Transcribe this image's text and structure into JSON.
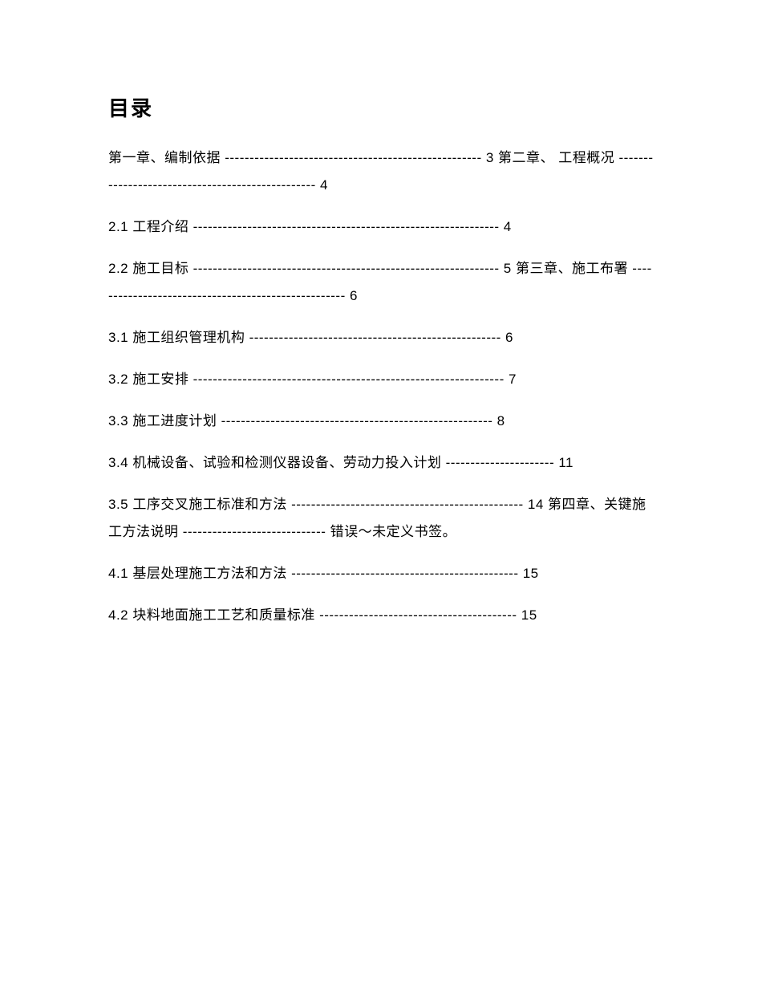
{
  "title": "目录",
  "entries": [
    "第一章、编制依据 ---------------------------------------------------- 3 第二章、 工程概况 ------------------------------------------------- 4",
    "2.1 工程介绍 -------------------------------------------------------------- 4",
    "2.2 施工目标 -------------------------------------------------------------- 5 第三章、施工布署 ---------------------------------------------------- 6",
    "3.1 施工组织管理机构 --------------------------------------------------- 6",
    "3.2 施工安排 --------------------------------------------------------------- 7",
    "3.3 施工进度计划 ------------------------------------------------------- 8",
    "3.4 机械设备、试验和检测仪器设备、劳动力投入计划 ---------------------- 11",
    "3.5 工序交叉施工标准和方法 ----------------------------------------------- 14 第四章、关键施工方法说明 ----------------------------- 错误～未定义书签。",
    "4.1 基层处理施工方法和方法 ---------------------------------------------- 15",
    "4.2 块料地面施工工艺和质量标准 ---------------------------------------- 15"
  ]
}
